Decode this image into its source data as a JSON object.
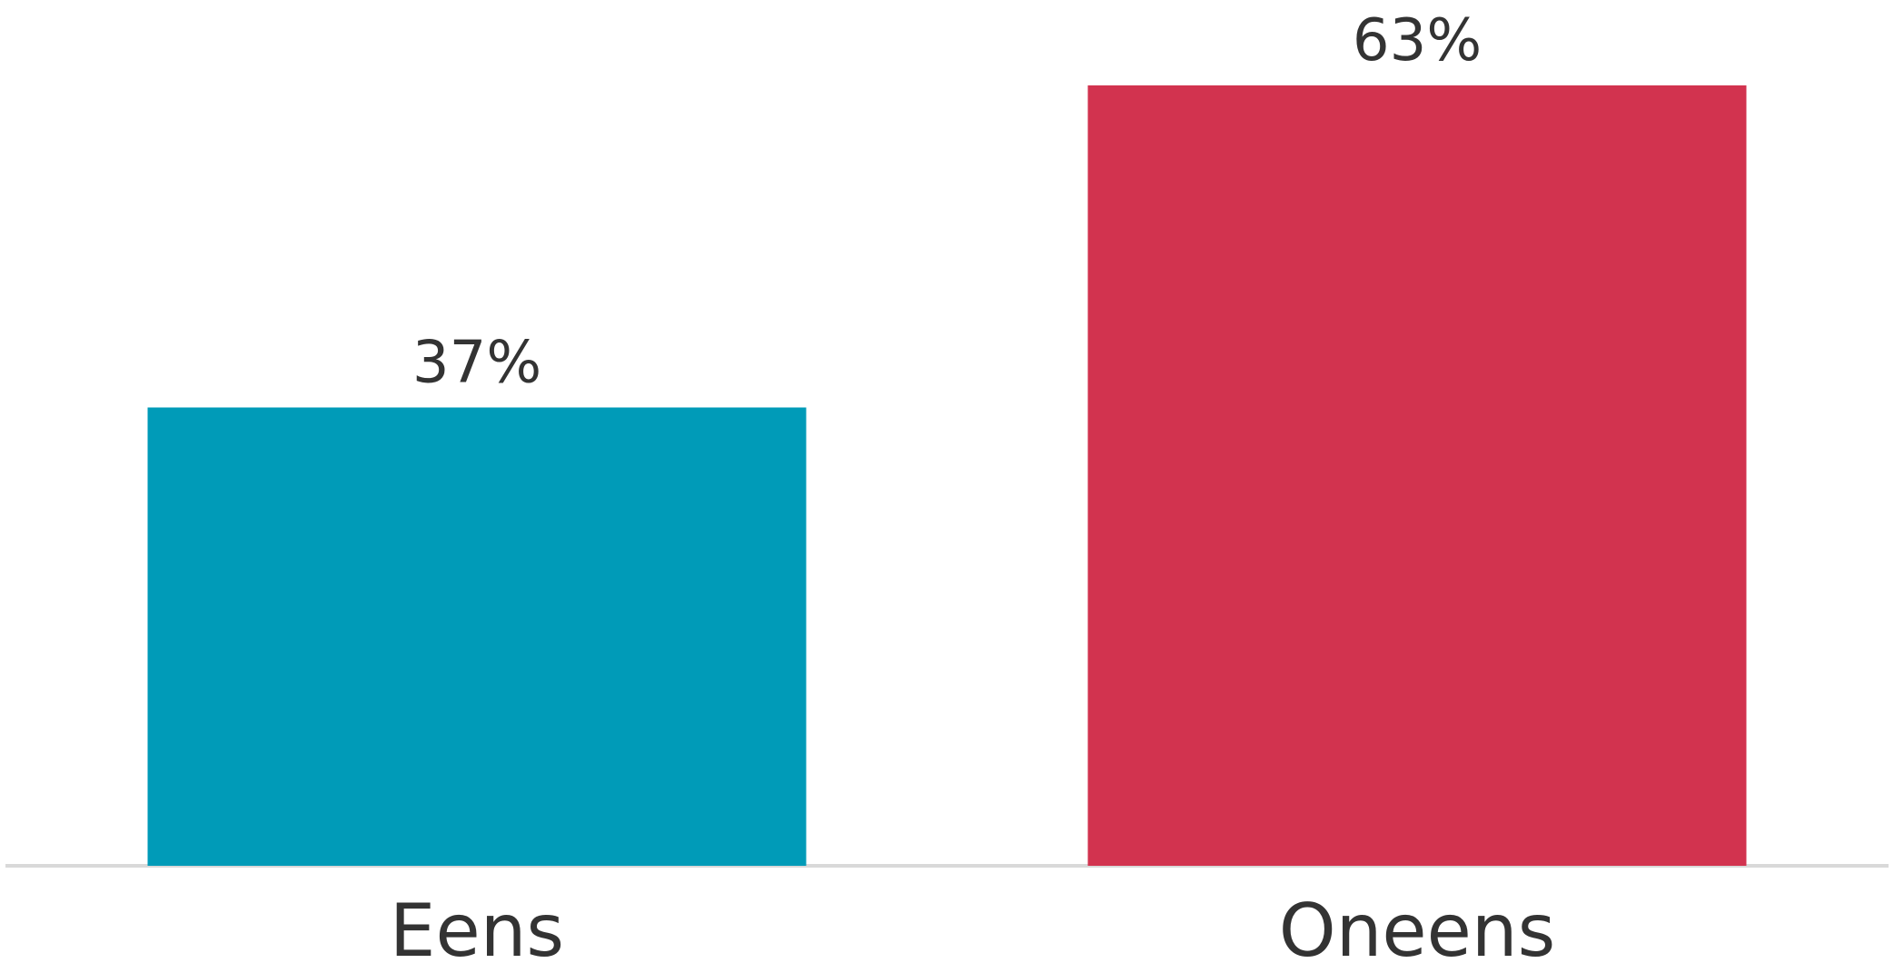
{
  "chart_data": {
    "type": "bar",
    "title": "",
    "xlabel": "",
    "ylabel": "",
    "categories": [
      "Eens",
      "Oneens"
    ],
    "values": [
      37,
      63
    ],
    "value_labels": [
      "37%",
      "63%"
    ],
    "colors": [
      "#009bb8",
      "#d2334f"
    ],
    "ylim": [
      0,
      63
    ],
    "grid": false,
    "legend": "none",
    "baseline_color": "#d9d9d9"
  }
}
